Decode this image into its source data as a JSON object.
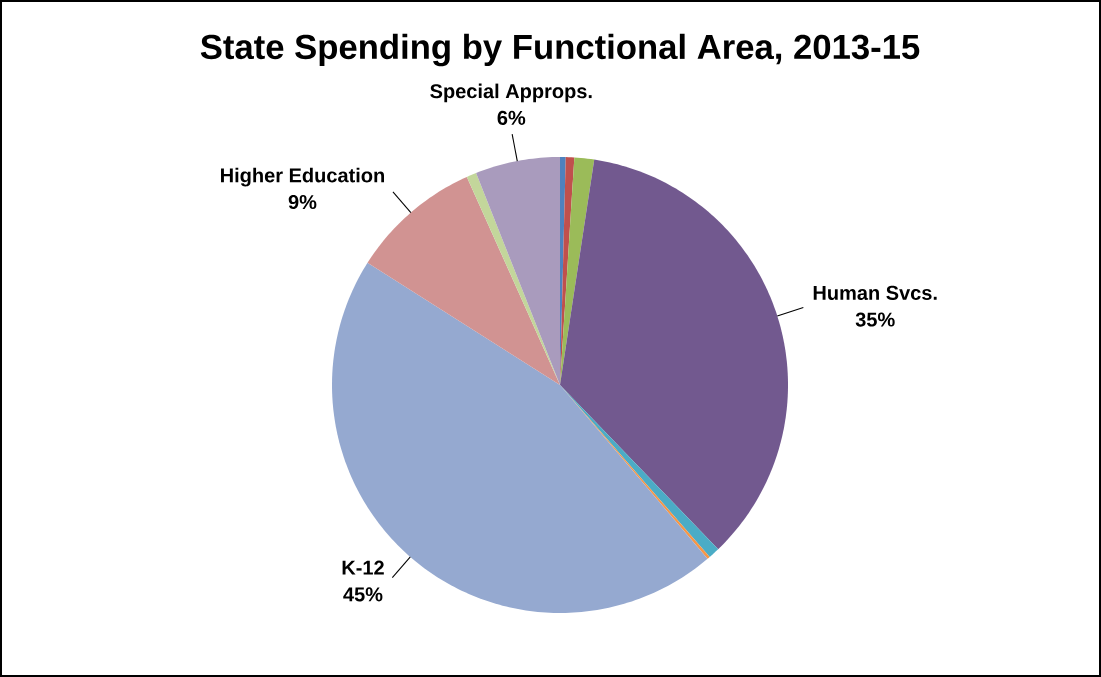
{
  "chart_data": {
    "type": "pie",
    "title": "State Spending by Functional Area, 2013-15",
    "categories": [
      null,
      null,
      null,
      "Human Svcs.",
      null,
      null,
      "K-12",
      "Higher Education",
      null,
      "Special Approps."
    ],
    "values": [
      0.4,
      0.6,
      1.4,
      35.4,
      0.8,
      0.2,
      45.2,
      9.3,
      0.7,
      6.0
    ],
    "value_labels": [
      null,
      null,
      null,
      "35%",
      null,
      null,
      "45%",
      "9%",
      null,
      "6%"
    ],
    "colors": [
      "#4f81bd",
      "#c0504d",
      "#9bbb59",
      "#72598f",
      "#4bacc6",
      "#f79646",
      "#95a9d0",
      "#d19392",
      "#c3d69b",
      "#a99bbd"
    ]
  }
}
